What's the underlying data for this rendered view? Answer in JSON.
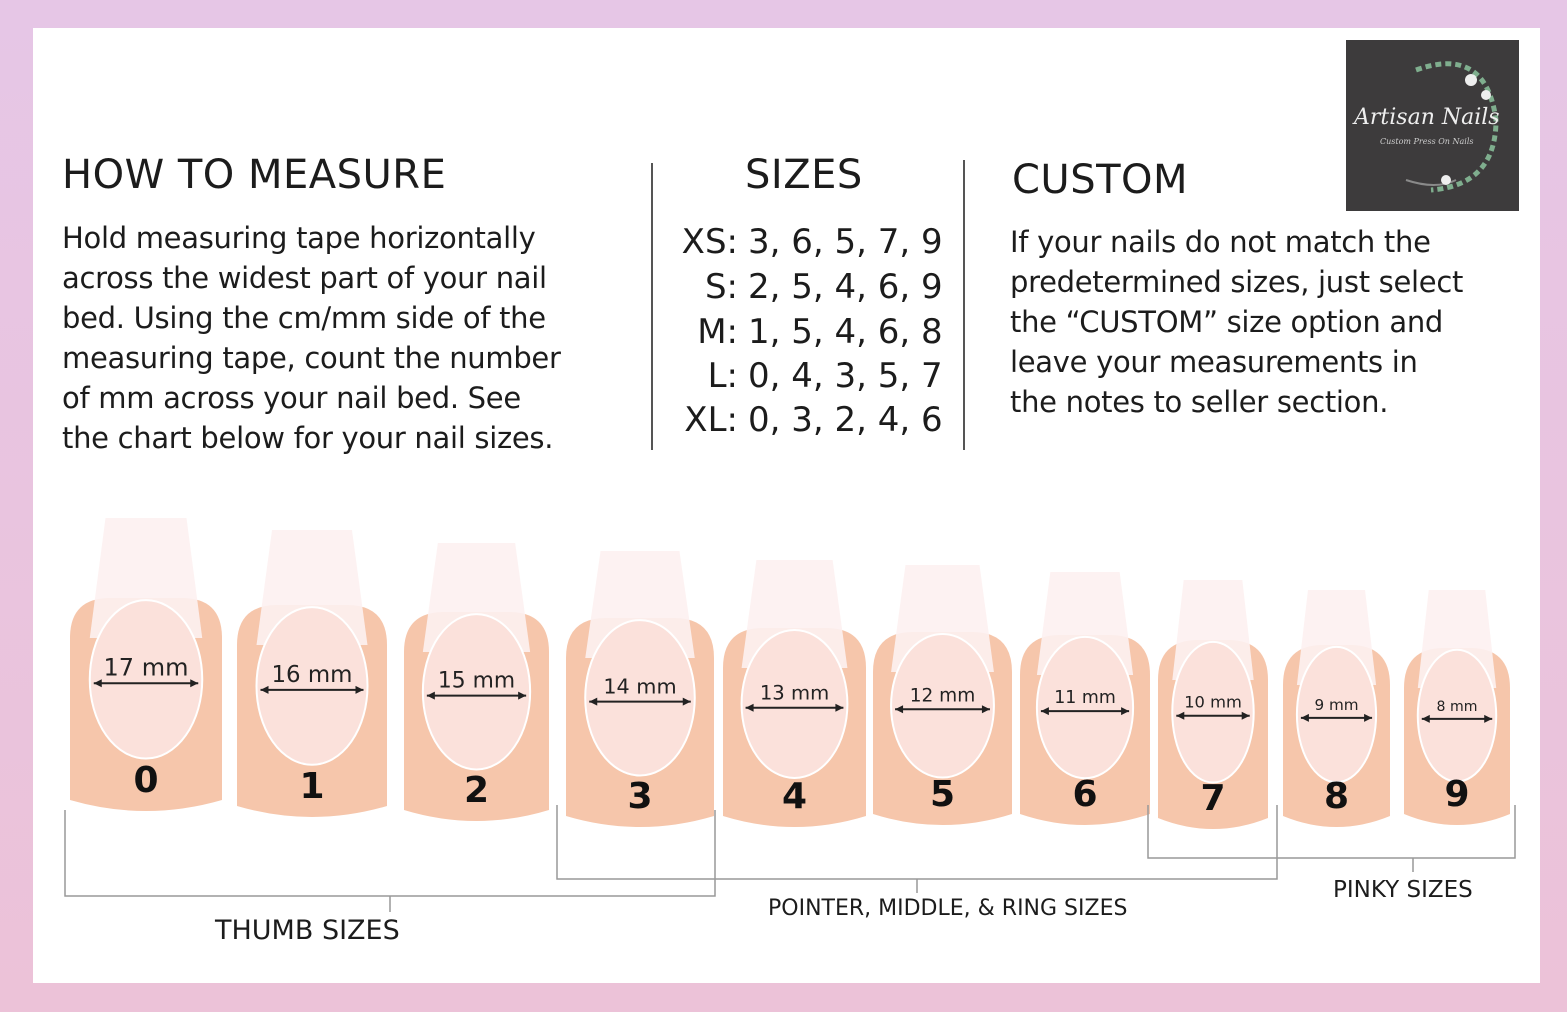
{
  "how_to_measure": {
    "title": "HOW TO MEASURE",
    "lines": [
      "Hold measuring tape horizontally",
      "across the widest part of your nail",
      "bed. Using the cm/mm side of the",
      "measuring tape, count the number",
      "of mm across your nail bed. See",
      "the chart below for your nail sizes."
    ]
  },
  "sizes": {
    "title": "SIZES",
    "rows": [
      {
        "size": "XS:",
        "values": "3, 6, 5, 7, 9"
      },
      {
        "size": "S:",
        "values": "2, 5, 4, 6, 9"
      },
      {
        "size": "M:",
        "values": "1, 5, 4, 6, 8"
      },
      {
        "size": "L:",
        "values": "0, 4, 3, 5, 7"
      },
      {
        "size": "XL:",
        "values": "0, 3, 2, 4, 6"
      }
    ]
  },
  "custom": {
    "title": "CUSTOM",
    "lines": [
      "If your nails do not match the",
      "predetermined sizes, just select",
      "the “CUSTOM” size option and",
      "leave your measurements in",
      "the notes to seller section."
    ]
  },
  "logo": {
    "name": "Artisan Nails",
    "tagline": "Custom Press On Nails"
  },
  "nails": [
    {
      "number": "0",
      "width": "17 mm"
    },
    {
      "number": "1",
      "width": "16 mm"
    },
    {
      "number": "2",
      "width": "15 mm"
    },
    {
      "number": "3",
      "width": "14 mm"
    },
    {
      "number": "4",
      "width": "13 mm"
    },
    {
      "number": "5",
      "width": "12 mm"
    },
    {
      "number": "6",
      "width": "11 mm"
    },
    {
      "number": "7",
      "width": "10 mm"
    },
    {
      "number": "8",
      "width": "9 mm"
    },
    {
      "number": "9",
      "width": "8 mm"
    }
  ],
  "groups": {
    "thumb": "THUMB SIZES",
    "pointer": "POINTER, MIDDLE, & RING SIZES",
    "pinky": "PINKY SIZES"
  },
  "colors": {
    "skin": "#f6c6ab",
    "background": "#e8c4e0",
    "logo_bg": "#3d3b3c",
    "text": "#1c1c1c"
  }
}
